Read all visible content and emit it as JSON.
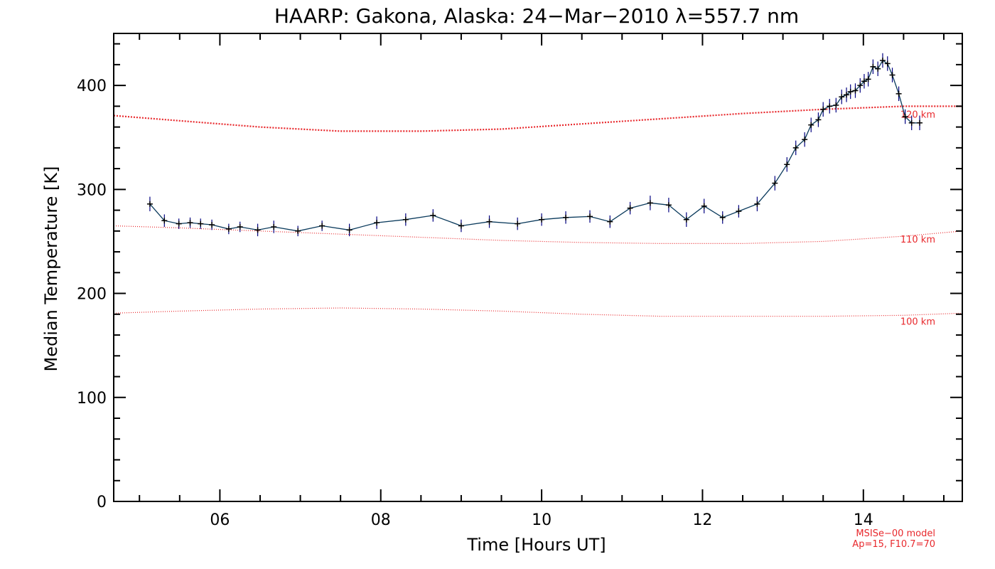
{
  "chart_data": {
    "type": "line",
    "title": "HAARP: Gakona,  Alaska: 24−Mar−2010 λ=557.7 nm",
    "xlabel": "Time [Hours UT]",
    "ylabel": "Median Temperature [K]",
    "xlim": [
      4.68,
      15.23
    ],
    "ylim": [
      0,
      450
    ],
    "x_ticks": [
      {
        "value": 6,
        "label": "06"
      },
      {
        "value": 8,
        "label": "08"
      },
      {
        "value": 10,
        "label": "10"
      },
      {
        "value": 12,
        "label": "12"
      },
      {
        "value": 14,
        "label": "14"
      }
    ],
    "y_ticks": [
      {
        "value": 0,
        "label": "0"
      },
      {
        "value": 100,
        "label": "100"
      },
      {
        "value": 200,
        "label": "200"
      },
      {
        "value": 300,
        "label": "300"
      },
      {
        "value": 400,
        "label": "400"
      }
    ],
    "grid": false,
    "colors": {
      "data": "#000080",
      "model": "#e8282c",
      "axes": "#000000"
    },
    "series": [
      {
        "name": "",
        "style": "line-with-plus-markers-and-error-bars",
        "x": [
          5.13,
          5.31,
          5.49,
          5.63,
          5.76,
          5.9,
          6.11,
          6.25,
          6.47,
          6.67,
          6.97,
          7.27,
          7.61,
          7.95,
          8.31,
          8.65,
          9.0,
          9.35,
          9.7,
          10.0,
          10.3,
          10.6,
          10.85,
          11.1,
          11.35,
          11.58,
          11.8,
          12.02,
          12.25,
          12.45,
          12.68,
          12.9,
          13.05,
          13.16,
          13.27,
          13.35,
          13.44,
          13.5,
          13.58,
          13.66,
          13.73,
          13.79,
          13.84,
          13.9,
          13.96,
          14.01,
          14.06,
          14.12,
          14.18,
          14.24,
          14.3,
          14.36,
          14.44,
          14.52,
          14.6,
          14.7
        ],
        "y": [
          286,
          270,
          267,
          268,
          267,
          266,
          262,
          264,
          261,
          264,
          260,
          265,
          261,
          268,
          271,
          275,
          265,
          269,
          267,
          271,
          273,
          274,
          269,
          282,
          287,
          285,
          271,
          284,
          273,
          279,
          286,
          306,
          324,
          340,
          348,
          362,
          367,
          377,
          380,
          381,
          389,
          391,
          394,
          395,
          400,
          404,
          406,
          418,
          416,
          424,
          421,
          410,
          392,
          370,
          364,
          364
        ],
        "error": [
          7,
          6,
          5,
          5,
          5,
          5,
          5,
          5,
          6,
          6,
          5,
          5,
          6,
          6,
          6,
          6,
          6,
          6,
          6,
          6,
          6,
          6,
          6,
          6,
          7,
          7,
          7,
          7,
          6,
          6,
          7,
          7,
          7,
          7,
          7,
          7,
          7,
          7,
          7,
          7,
          7,
          7,
          7,
          7,
          7,
          7,
          7,
          7,
          7,
          7,
          7,
          7,
          7,
          7,
          7,
          7
        ]
      }
    ],
    "model_curves": [
      {
        "label": "120 km",
        "x": [
          4.68,
          5.5,
          6.5,
          7.5,
          8.5,
          9.5,
          10.5,
          11.5,
          12.5,
          13.5,
          14.5,
          15.23
        ],
        "y": [
          371,
          366,
          360,
          356,
          356,
          358,
          363,
          368,
          373,
          377,
          380,
          380
        ]
      },
      {
        "label": "110 km",
        "x": [
          4.68,
          5.5,
          6.5,
          7.5,
          8.5,
          9.5,
          10.5,
          11.5,
          12.5,
          13.5,
          14.5,
          15.23
        ],
        "y": [
          265,
          263,
          260,
          257,
          254,
          251,
          249,
          248,
          248,
          250,
          255,
          260
        ]
      },
      {
        "label": "100 km",
        "x": [
          4.68,
          5.5,
          6.5,
          7.5,
          8.5,
          9.5,
          10.5,
          11.5,
          12.5,
          13.5,
          14.5,
          15.23
        ],
        "y": [
          181,
          183,
          185,
          186,
          185,
          183,
          180,
          178,
          178,
          178,
          179,
          181
        ]
      }
    ],
    "annotations": [
      "MSISe−00 model",
      "Ap=15, F10.7=70"
    ]
  }
}
